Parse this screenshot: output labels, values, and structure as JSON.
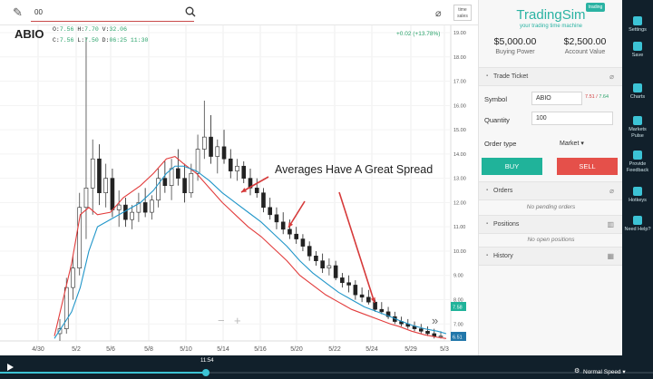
{
  "toolbar": {
    "search_value": "00",
    "time_sales_line1": "time",
    "time_sales_line2": "sales"
  },
  "chart": {
    "ticker": "ABIO",
    "ohlc_line1_o_label": "O:",
    "ohlc_line1_o": "7.56",
    "ohlc_line1_h_label": "H:",
    "ohlc_line1_h": "7.70",
    "ohlc_line1_v_label": "V:",
    "ohlc_line1_v": "32.06",
    "ohlc_line2_c_label": "C:",
    "ohlc_line2_c": "7.56",
    "ohlc_line2_l_label": "L:",
    "ohlc_line2_l": "7.50",
    "ohlc_line2_t_label": "D:",
    "ohlc_line2_t": "06:25 11:30",
    "change": "+0.02 (+13.78%)",
    "annotation": "Averages Have A Great Spread",
    "zoom_out": "−",
    "zoom_in": "+",
    "forward": "»"
  },
  "chart_data": {
    "type": "candlestick",
    "x_ticks": [
      "4/30",
      "5/2",
      "5/6",
      "5/8",
      "5/10",
      "5/14",
      "5/16",
      "5/20",
      "5/22",
      "5/24",
      "5/29",
      "5/3"
    ],
    "y_ticks": [
      "19.00",
      "18.00",
      "17.00",
      "16.00",
      "15.00",
      "14.00",
      "13.00",
      "12.00",
      "11.00",
      "10.00",
      "9.00",
      "8.00",
      "7.00"
    ],
    "ylim": [
      6.3,
      19.3
    ],
    "price_tags": [
      {
        "value": "7.58",
        "color": "#20b39a"
      },
      {
        "value": "6.51",
        "color": "#2277aa"
      }
    ],
    "series": [
      {
        "name": "",
        "color": "#e23c3c",
        "values": [
          [
            0,
            6.5
          ],
          [
            8,
            9.5
          ],
          [
            12,
            11.5
          ],
          [
            16,
            11.8
          ],
          [
            20,
            11.5
          ],
          [
            26,
            11.6
          ],
          [
            32,
            12.2
          ],
          [
            40,
            12.7
          ],
          [
            46,
            13.2
          ],
          [
            52,
            13.8
          ],
          [
            56,
            13.9
          ],
          [
            60,
            13.6
          ],
          [
            66,
            13.2
          ],
          [
            72,
            12.6
          ],
          [
            78,
            12.0
          ],
          [
            84,
            11.5
          ],
          [
            90,
            11.0
          ],
          [
            96,
            10.6
          ],
          [
            102,
            10.1
          ],
          [
            108,
            9.6
          ],
          [
            114,
            9.0
          ],
          [
            120,
            8.6
          ],
          [
            126,
            8.2
          ],
          [
            132,
            7.9
          ],
          [
            138,
            7.6
          ],
          [
            144,
            7.4
          ],
          [
            150,
            7.2
          ],
          [
            156,
            7.0
          ],
          [
            160,
            6.9
          ],
          [
            166,
            6.7
          ],
          [
            172,
            6.55
          ],
          [
            178,
            6.45
          ],
          [
            182,
            6.4
          ]
        ]
      },
      {
        "name": "",
        "color": "#2196c9",
        "values": [
          [
            0,
            6.4
          ],
          [
            8,
            7.5
          ],
          [
            12,
            8.5
          ],
          [
            16,
            10.0
          ],
          [
            20,
            11.0
          ],
          [
            26,
            11.3
          ],
          [
            32,
            11.6
          ],
          [
            40,
            12.0
          ],
          [
            46,
            12.5
          ],
          [
            52,
            13.2
          ],
          [
            56,
            13.5
          ],
          [
            60,
            13.5
          ],
          [
            66,
            13.3
          ],
          [
            72,
            12.9
          ],
          [
            78,
            12.4
          ],
          [
            84,
            12.0
          ],
          [
            90,
            11.6
          ],
          [
            96,
            11.2
          ],
          [
            102,
            10.7
          ],
          [
            108,
            10.2
          ],
          [
            114,
            9.6
          ],
          [
            120,
            9.1
          ],
          [
            126,
            8.7
          ],
          [
            132,
            8.3
          ],
          [
            138,
            8.0
          ],
          [
            144,
            7.7
          ],
          [
            150,
            7.5
          ],
          [
            156,
            7.3
          ],
          [
            160,
            7.15
          ],
          [
            166,
            6.95
          ],
          [
            172,
            6.8
          ],
          [
            178,
            6.7
          ],
          [
            182,
            6.6
          ]
        ]
      }
    ],
    "candles": [
      [
        6.6,
        7.2,
        6.3,
        6.8
      ],
      [
        6.8,
        8.9,
        6.6,
        8.5
      ],
      [
        8.5,
        9.8,
        8.0,
        9.3
      ],
      [
        9.3,
        12.4,
        9.0,
        11.8
      ],
      [
        11.8,
        18.8,
        10.5,
        12.6
      ],
      [
        12.6,
        14.6,
        11.5,
        13.8
      ],
      [
        13.8,
        14.4,
        11.9,
        12.4
      ],
      [
        12.4,
        13.6,
        11.8,
        13.0
      ],
      [
        13.0,
        13.4,
        11.4,
        11.7
      ],
      [
        11.7,
        12.5,
        11.0,
        11.9
      ],
      [
        11.9,
        12.2,
        11.0,
        11.3
      ],
      [
        11.3,
        11.9,
        10.9,
        11.6
      ],
      [
        11.6,
        12.4,
        11.2,
        12.0
      ],
      [
        12.0,
        12.6,
        11.4,
        11.6
      ],
      [
        11.6,
        12.3,
        11.3,
        12.1
      ],
      [
        12.1,
        13.4,
        11.8,
        13.0
      ],
      [
        13.0,
        13.7,
        12.4,
        12.7
      ],
      [
        12.7,
        13.8,
        12.1,
        13.4
      ],
      [
        13.4,
        14.2,
        12.7,
        13.0
      ],
      [
        13.0,
        13.6,
        12.0,
        12.4
      ],
      [
        12.4,
        13.6,
        12.2,
        13.2
      ],
      [
        13.2,
        14.8,
        12.9,
        14.2
      ],
      [
        14.2,
        16.2,
        13.8,
        14.7
      ],
      [
        14.7,
        15.6,
        13.6,
        13.9
      ],
      [
        13.9,
        14.6,
        13.2,
        14.3
      ],
      [
        14.3,
        15.0,
        13.6,
        13.8
      ],
      [
        13.8,
        14.2,
        13.0,
        13.3
      ],
      [
        13.3,
        13.8,
        12.9,
        13.5
      ],
      [
        13.5,
        13.7,
        12.8,
        13.0
      ],
      [
        13.0,
        13.4,
        12.3,
        12.6
      ],
      [
        12.6,
        13.0,
        12.2,
        12.4
      ],
      [
        12.4,
        12.6,
        11.6,
        11.8
      ],
      [
        11.8,
        12.2,
        11.3,
        11.5
      ],
      [
        11.5,
        11.8,
        10.9,
        11.2
      ],
      [
        11.2,
        11.6,
        10.7,
        10.9
      ],
      [
        10.9,
        11.3,
        10.5,
        10.7
      ],
      [
        10.7,
        11.0,
        10.3,
        10.5
      ],
      [
        10.5,
        10.7,
        10.0,
        10.2
      ],
      [
        10.2,
        10.4,
        9.6,
        9.8
      ],
      [
        9.8,
        10.0,
        9.4,
        9.6
      ],
      [
        9.6,
        9.9,
        9.1,
        9.3
      ],
      [
        9.3,
        9.7,
        9.0,
        9.4
      ],
      [
        9.4,
        9.6,
        8.8,
        8.9
      ],
      [
        8.9,
        9.1,
        8.5,
        8.7
      ],
      [
        8.7,
        9.0,
        8.3,
        8.6
      ],
      [
        8.6,
        8.8,
        8.0,
        8.2
      ],
      [
        8.2,
        8.5,
        7.9,
        8.1
      ],
      [
        8.1,
        8.4,
        7.8,
        7.9
      ],
      [
        7.9,
        8.0,
        7.5,
        7.6
      ],
      [
        7.6,
        7.9,
        7.4,
        7.5
      ],
      [
        7.5,
        7.7,
        7.2,
        7.3
      ],
      [
        7.3,
        7.5,
        7.0,
        7.1
      ],
      [
        7.1,
        7.3,
        6.9,
        7.0
      ],
      [
        7.0,
        7.2,
        6.8,
        6.9
      ],
      [
        6.9,
        7.1,
        6.7,
        6.8
      ],
      [
        6.8,
        7.0,
        6.6,
        6.7
      ],
      [
        6.7,
        6.9,
        6.5,
        6.6
      ],
      [
        6.6,
        6.8,
        6.4,
        6.5
      ],
      [
        6.5,
        6.7,
        6.4,
        6.5
      ]
    ]
  },
  "panel": {
    "badge": "trading",
    "logo": "TradingSim",
    "tagline": "your trading time machine",
    "buying_power": "$5,000.00",
    "buying_power_label": "Buying Power",
    "account_value": "$2,500.00",
    "account_value_label": "Account Value",
    "trade_ticket": "Trade Ticket",
    "symbol_label": "Symbol",
    "symbol_value": "ABIO",
    "bid": "7.51",
    "ask": "7.64",
    "quantity_label": "Quantity",
    "quantity_value": "100",
    "order_type_label": "Order type",
    "order_type_value": "Market ▾",
    "buy": "BUY",
    "sell": "SELL",
    "orders": "Orders",
    "no_orders": "No pending orders",
    "positions": "Positions",
    "no_positions": "No open positions",
    "history": "History"
  },
  "sidebar": {
    "items": [
      {
        "label": "Settings"
      },
      {
        "label": "Save"
      },
      {
        "label": "Charts"
      },
      {
        "label": "Markets Pulse"
      },
      {
        "label": "Provide Feedback"
      },
      {
        "label": "Hotkeys"
      },
      {
        "label": "Need Help?"
      }
    ]
  },
  "timebar": {
    "time": "11:54",
    "speed": "Normal Speed ▾",
    "progress": 0.315
  },
  "colors": {
    "accent": "#2bb3a3",
    "buy": "#20b39a",
    "sell": "#e5504a",
    "dark": "#11202b"
  }
}
